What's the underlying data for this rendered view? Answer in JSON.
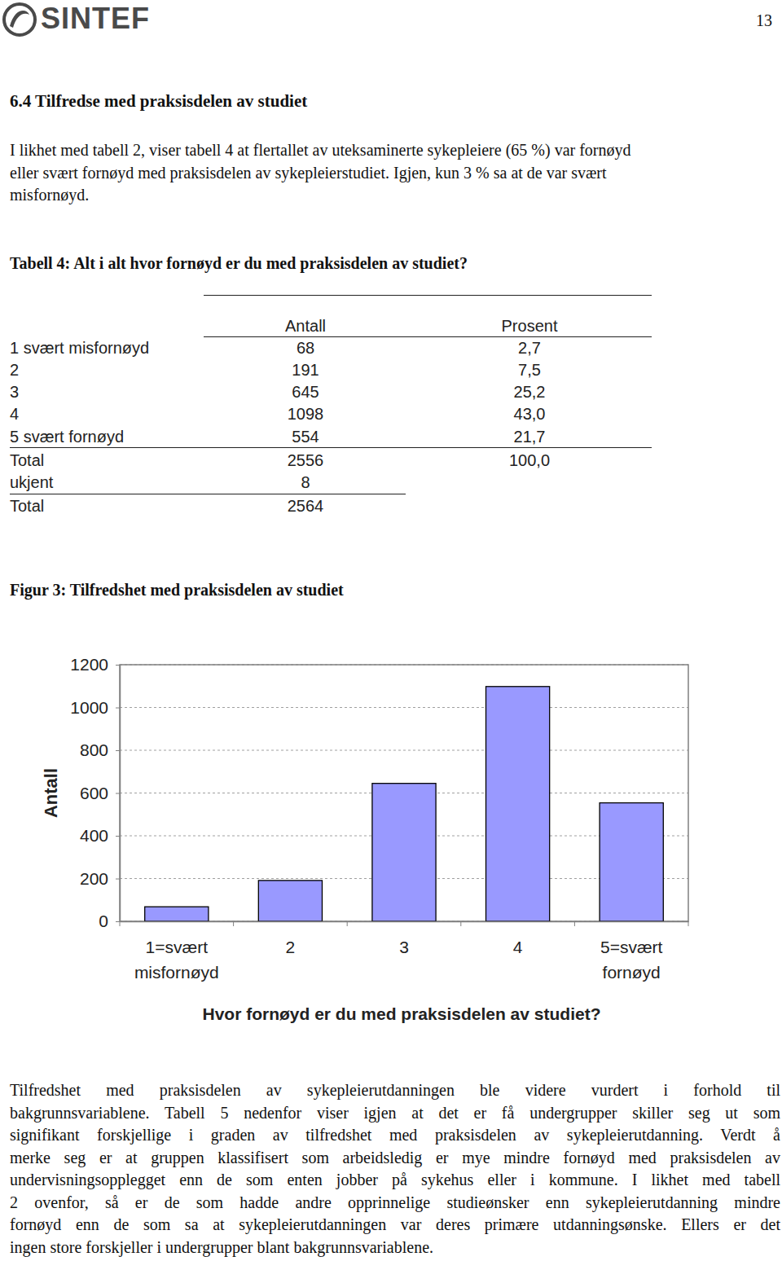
{
  "header": {
    "logo": "SINTEF",
    "page_number": "13"
  },
  "section_title": "6.4 Tilfredse med praksisdelen av studiet",
  "intro": [
    "I likhet med tabell 2, viser tabell 4 at flertallet av uteksaminerte sykepleiere (65 %) var fornøyd",
    "eller svært fornøyd med praksisdelen av sykepleierstudiet. Igjen, kun 3 % sa at de var svært",
    "misfornøyd."
  ],
  "table": {
    "caption": "Tabell 4: Alt i alt hvor fornøyd er du med praksisdelen av studiet?",
    "columns": [
      "Antall",
      "Prosent"
    ],
    "rows": [
      [
        "1 svært misfornøyd",
        "68",
        "2,7"
      ],
      [
        "2",
        "191",
        "7,5"
      ],
      [
        "3",
        "645",
        "25,2"
      ],
      [
        "4",
        "1098",
        "43,0"
      ],
      [
        "5 svært fornøyd",
        "554",
        "21,7"
      ],
      [
        "Total",
        "2556",
        "100,0"
      ],
      [
        "ukjent",
        "8"
      ],
      [
        "Total",
        "2564"
      ]
    ]
  },
  "chart_data": {
    "type": "bar",
    "title": "Figur 3: Tilfredshet med praksisdelen av studiet",
    "x_label": "Hvor fornøyd er du med praksisdelen av studiet?",
    "y_label": "Antall",
    "categories": [
      "1=svært misfornøyd",
      "2",
      "3",
      "4",
      "5=svært fornøyd"
    ],
    "values": [
      68,
      191,
      645,
      1098,
      554
    ],
    "color": "#9999ff",
    "ylim": [
      0,
      1200
    ],
    "yticks": [
      0,
      200,
      400,
      600,
      800,
      1000,
      1200
    ],
    "grid": true
  },
  "body": [
    "Tilfredshet med praksisdelen av sykepleierutdanningen ble videre vurdert i forhold til",
    "bakgrunnsvariablene. Tabell 5 nedenfor viser igjen at det er få undergrupper skiller seg ut som",
    "signifikant forskjellige i graden av tilfredshet med praksisdelen av sykepleierutdanning. Verdt å",
    "merke seg er at gruppen klassifisert som arbeidsledig er mye mindre fornøyd med praksisdelen av",
    "undervisningsopplegget enn de som enten jobber på sykehus eller i kommune. I likhet med tabell",
    "2 ovenfor, så er de som hadde andre opprinnelige studieønsker enn sykepleierutdanning mindre",
    "fornøyd enn de som sa at sykepleierutdanningen var deres primære utdanningsønske. Ellers er det",
    "ingen store forskjeller i undergrupper blant bakgrunnsvariablene."
  ]
}
